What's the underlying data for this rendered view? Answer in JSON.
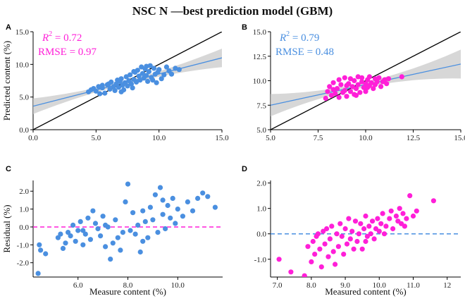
{
  "figure": {
    "title": "NSC N —best prediction model (GBM)"
  },
  "colors": {
    "blue": "#4A8FE0",
    "magenta": "#FF1FD8",
    "ci": "#C9C9C9",
    "fit": "#4A8FE0",
    "identity": "#000000"
  },
  "chart_data": [
    {
      "panel": "A",
      "type": "scatter",
      "xlim": [
        0,
        15
      ],
      "ylim": [
        0,
        15
      ],
      "xticks": [
        "0.0",
        "5.0",
        "10.0",
        "15.0"
      ],
      "yticks": [
        "0.0",
        "5.0",
        "10.0",
        "15.0"
      ],
      "xlabel": "",
      "ylabel": "Predicted content (%)",
      "annotation": {
        "r2_label": "R",
        "r2_sup": "2",
        "r2_value": " = 0.72",
        "rmse": "RMSE = 0.97",
        "color": "#FF1FD8"
      },
      "point_color": "#4A8FE0",
      "fit": {
        "x0": 0,
        "y0": 3.6,
        "x1": 15,
        "y1": 11.0
      },
      "points": [
        [
          4.4,
          5.8
        ],
        [
          4.6,
          6.1
        ],
        [
          4.8,
          6.3
        ],
        [
          5.0,
          5.9
        ],
        [
          5.2,
          6.6
        ],
        [
          5.3,
          5.5
        ],
        [
          5.5,
          6.4
        ],
        [
          5.7,
          5.6
        ],
        [
          5.9,
          6.9
        ],
        [
          6.1,
          6.2
        ],
        [
          6.2,
          7.3
        ],
        [
          6.4,
          6.6
        ],
        [
          6.5,
          6.0
        ],
        [
          6.6,
          7.0
        ],
        [
          6.8,
          6.5
        ],
        [
          6.9,
          7.4
        ],
        [
          7.0,
          7.8
        ],
        [
          7.1,
          6.8
        ],
        [
          7.2,
          6.1
        ],
        [
          7.3,
          7.2
        ],
        [
          7.4,
          8.1
        ],
        [
          7.5,
          6.7
        ],
        [
          7.6,
          7.5
        ],
        [
          7.7,
          8.4
        ],
        [
          7.8,
          7.0
        ],
        [
          7.9,
          6.4
        ],
        [
          8.0,
          7.7
        ],
        [
          8.1,
          8.8
        ],
        [
          8.2,
          7.3
        ],
        [
          8.3,
          9.1
        ],
        [
          8.4,
          8.2
        ],
        [
          8.5,
          7.6
        ],
        [
          8.6,
          9.6
        ],
        [
          8.7,
          8.6
        ],
        [
          8.8,
          7.9
        ],
        [
          8.9,
          9.3
        ],
        [
          9.0,
          8.3
        ],
        [
          9.1,
          7.4
        ],
        [
          9.2,
          8.9
        ],
        [
          9.3,
          9.8
        ],
        [
          9.4,
          8.0
        ],
        [
          9.5,
          7.6
        ],
        [
          9.6,
          9.4
        ],
        [
          9.7,
          8.5
        ],
        [
          9.8,
          7.2
        ],
        [
          9.9,
          8.8
        ],
        [
          10.0,
          9.2
        ],
        [
          10.2,
          7.8
        ],
        [
          10.4,
          8.4
        ],
        [
          10.6,
          9.6
        ],
        [
          10.8,
          9.0
        ],
        [
          11.0,
          8.5
        ],
        [
          11.3,
          9.4
        ],
        [
          11.6,
          9.2
        ],
        [
          6.0,
          7.0
        ],
        [
          7.0,
          5.8
        ],
        [
          8.0,
          8.9
        ],
        [
          9.0,
          9.7
        ],
        [
          5.5,
          6.8
        ],
        [
          6.7,
          7.6
        ]
      ]
    },
    {
      "panel": "B",
      "type": "scatter",
      "xlim": [
        5,
        15
      ],
      "ylim": [
        5,
        15
      ],
      "xticks": [
        "5.0",
        "7.5",
        "10.0",
        "12.5",
        "15.0"
      ],
      "yticks": [
        "5.0",
        "7.5",
        "10.0",
        "12.5",
        "15.0"
      ],
      "xlabel": "",
      "ylabel": "",
      "annotation": {
        "r2_label": "R",
        "r2_sup": "2",
        "r2_value": " = 0.79",
        "rmse": "RMSE = 0.48",
        "color": "#4A8FE0"
      },
      "point_color": "#FF1FD8",
      "fit": {
        "x0": 5,
        "y0": 7.5,
        "x1": 15,
        "y1": 11.7
      },
      "points": [
        [
          7.9,
          8.2
        ],
        [
          8.0,
          8.9
        ],
        [
          8.1,
          9.4
        ],
        [
          8.2,
          8.5
        ],
        [
          8.3,
          9.8
        ],
        [
          8.4,
          8.7
        ],
        [
          8.5,
          9.2
        ],
        [
          8.6,
          10.1
        ],
        [
          8.6,
          8.3
        ],
        [
          8.7,
          9.6
        ],
        [
          8.8,
          8.8
        ],
        [
          8.9,
          10.3
        ],
        [
          8.9,
          9.0
        ],
        [
          9.0,
          8.4
        ],
        [
          9.1,
          9.7
        ],
        [
          9.2,
          10.2
        ],
        [
          9.2,
          8.9
        ],
        [
          9.3,
          9.4
        ],
        [
          9.4,
          10.0
        ],
        [
          9.4,
          8.6
        ],
        [
          9.5,
          9.2
        ],
        [
          9.6,
          10.4
        ],
        [
          9.6,
          9.6
        ],
        [
          9.7,
          8.8
        ],
        [
          9.8,
          9.9
        ],
        [
          9.8,
          10.3
        ],
        [
          9.9,
          9.3
        ],
        [
          10.0,
          9.7
        ],
        [
          10.0,
          8.9
        ],
        [
          10.1,
          10.1
        ],
        [
          10.2,
          9.5
        ],
        [
          10.2,
          10.4
        ],
        [
          10.3,
          9.8
        ],
        [
          10.4,
          9.2
        ],
        [
          10.5,
          10.2
        ],
        [
          10.5,
          9.6
        ],
        [
          10.6,
          9.9
        ],
        [
          10.7,
          10.3
        ],
        [
          10.8,
          9.4
        ],
        [
          10.9,
          9.9
        ],
        [
          11.0,
          10.1
        ],
        [
          11.1,
          9.7
        ],
        [
          11.2,
          10.2
        ],
        [
          11.9,
          10.4
        ],
        [
          8.3,
          9.1
        ],
        [
          9.0,
          9.5
        ],
        [
          9.5,
          8.5
        ],
        [
          10.1,
          9.3
        ]
      ]
    },
    {
      "panel": "C",
      "type": "scatter",
      "xlim": [
        4.2,
        11.8
      ],
      "ylim": [
        -2.8,
        2.6
      ],
      "xticks": [
        "6.0",
        "8.0",
        "10.0"
      ],
      "yticks": [
        "-2.0",
        "-1.0",
        "0.0",
        "1.0",
        "2.0"
      ],
      "xlabel": "Measure content (%)",
      "ylabel": "Residual (%)",
      "point_color": "#4A8FE0",
      "refline": {
        "y": 0,
        "color": "#FF1FD8"
      },
      "points": [
        [
          4.4,
          -2.6
        ],
        [
          4.45,
          -1.0
        ],
        [
          4.5,
          -1.3
        ],
        [
          4.7,
          -1.5
        ],
        [
          5.2,
          -0.6
        ],
        [
          5.3,
          -0.4
        ],
        [
          5.4,
          -1.2
        ],
        [
          5.5,
          -0.9
        ],
        [
          5.6,
          -0.3
        ],
        [
          5.7,
          -0.5
        ],
        [
          5.8,
          0.1
        ],
        [
          5.9,
          -0.8
        ],
        [
          6.0,
          -0.2
        ],
        [
          6.1,
          0.3
        ],
        [
          6.2,
          -1.0
        ],
        [
          6.3,
          -0.4
        ],
        [
          6.4,
          0.5
        ],
        [
          6.5,
          -0.7
        ],
        [
          6.6,
          0.9
        ],
        [
          6.7,
          0.2
        ],
        [
          6.8,
          -0.1
        ],
        [
          6.9,
          -0.5
        ],
        [
          7.0,
          0.6
        ],
        [
          7.1,
          -1.1
        ],
        [
          7.2,
          0.0
        ],
        [
          7.3,
          -1.8
        ],
        [
          7.4,
          -0.9
        ],
        [
          7.5,
          0.4
        ],
        [
          7.6,
          -0.6
        ],
        [
          7.7,
          -1.3
        ],
        [
          7.8,
          -0.3
        ],
        [
          7.9,
          1.4
        ],
        [
          8.0,
          2.4
        ],
        [
          8.1,
          -0.2
        ],
        [
          8.2,
          0.8
        ],
        [
          8.3,
          -0.4
        ],
        [
          8.4,
          0.1
        ],
        [
          8.5,
          -1.4
        ],
        [
          8.6,
          0.9
        ],
        [
          8.7,
          0.3
        ],
        [
          8.8,
          -0.6
        ],
        [
          8.9,
          1.1
        ],
        [
          9.0,
          0.4
        ],
        [
          9.1,
          1.8
        ],
        [
          9.2,
          -0.3
        ],
        [
          9.3,
          2.2
        ],
        [
          9.4,
          0.7
        ],
        [
          9.5,
          -0.1
        ],
        [
          9.6,
          1.2
        ],
        [
          9.7,
          0.5
        ],
        [
          9.8,
          1.6
        ],
        [
          9.9,
          0.2
        ],
        [
          10.0,
          1.0
        ],
        [
          10.2,
          0.6
        ],
        [
          10.4,
          1.4
        ],
        [
          10.6,
          0.9
        ],
        [
          10.8,
          1.6
        ],
        [
          11.0,
          1.9
        ],
        [
          11.2,
          1.7
        ],
        [
          11.5,
          1.1
        ],
        [
          6.2,
          -0.2
        ],
        [
          7.1,
          0.1
        ],
        [
          8.6,
          -0.8
        ],
        [
          9.4,
          1.5
        ]
      ]
    },
    {
      "panel": "D",
      "type": "scatter",
      "xlim": [
        6.8,
        12.4
      ],
      "ylim": [
        -1.7,
        2.1
      ],
      "xticks": [
        "7.0",
        "8.0",
        "9.0",
        "10.0",
        "11.0",
        "12"
      ],
      "yticks": [
        "-1.0",
        "0.0",
        "1.0",
        "2.0"
      ],
      "xlabel": "Measured content (%)",
      "ylabel": "",
      "point_color": "#FF1FD8",
      "refline": {
        "y": 0,
        "color": "#4A8FE0"
      },
      "points": [
        [
          7.05,
          -1.0
        ],
        [
          7.4,
          -1.5
        ],
        [
          7.8,
          -1.65
        ],
        [
          7.9,
          -0.5
        ],
        [
          8.0,
          -1.1
        ],
        [
          8.05,
          -0.3
        ],
        [
          8.1,
          -0.8
        ],
        [
          8.2,
          0.0
        ],
        [
          8.25,
          -0.6
        ],
        [
          8.3,
          -1.3
        ],
        [
          8.35,
          0.1
        ],
        [
          8.4,
          -0.4
        ],
        [
          8.5,
          -0.9
        ],
        [
          8.55,
          -0.2
        ],
        [
          8.6,
          0.3
        ],
        [
          8.65,
          -0.7
        ],
        [
          8.7,
          -1.2
        ],
        [
          8.75,
          0.0
        ],
        [
          8.8,
          -0.5
        ],
        [
          8.85,
          0.4
        ],
        [
          8.9,
          -0.1
        ],
        [
          8.95,
          -0.8
        ],
        [
          9.0,
          0.2
        ],
        [
          9.05,
          -0.4
        ],
        [
          9.1,
          0.6
        ],
        [
          9.15,
          -0.2
        ],
        [
          9.2,
          0.1
        ],
        [
          9.3,
          0.5
        ],
        [
          9.35,
          -0.3
        ],
        [
          9.4,
          0.0
        ],
        [
          9.45,
          0.4
        ],
        [
          9.5,
          -0.6
        ],
        [
          9.55,
          0.2
        ],
        [
          9.6,
          0.7
        ],
        [
          9.65,
          -0.1
        ],
        [
          9.7,
          0.3
        ],
        [
          9.75,
          0.0
        ],
        [
          9.8,
          0.5
        ],
        [
          9.85,
          -0.2
        ],
        [
          9.9,
          0.2
        ],
        [
          9.95,
          0.6
        ],
        [
          10.0,
          0.1
        ],
        [
          10.05,
          0.4
        ],
        [
          10.1,
          0.8
        ],
        [
          10.2,
          0.3
        ],
        [
          10.3,
          0.6
        ],
        [
          10.35,
          0.9
        ],
        [
          10.4,
          0.2
        ],
        [
          10.5,
          0.7
        ],
        [
          10.55,
          0.5
        ],
        [
          10.6,
          1.0
        ],
        [
          10.65,
          0.4
        ],
        [
          10.7,
          0.8
        ],
        [
          10.8,
          0.6
        ],
        [
          10.9,
          1.5
        ],
        [
          11.0,
          0.7
        ],
        [
          11.1,
          0.9
        ],
        [
          11.6,
          1.3
        ],
        [
          8.15,
          -0.1
        ],
        [
          8.45,
          0.2
        ],
        [
          9.25,
          -0.6
        ],
        [
          9.6,
          -0.3
        ],
        [
          10.15,
          0.0
        ],
        [
          10.75,
          0.3
        ]
      ]
    }
  ]
}
